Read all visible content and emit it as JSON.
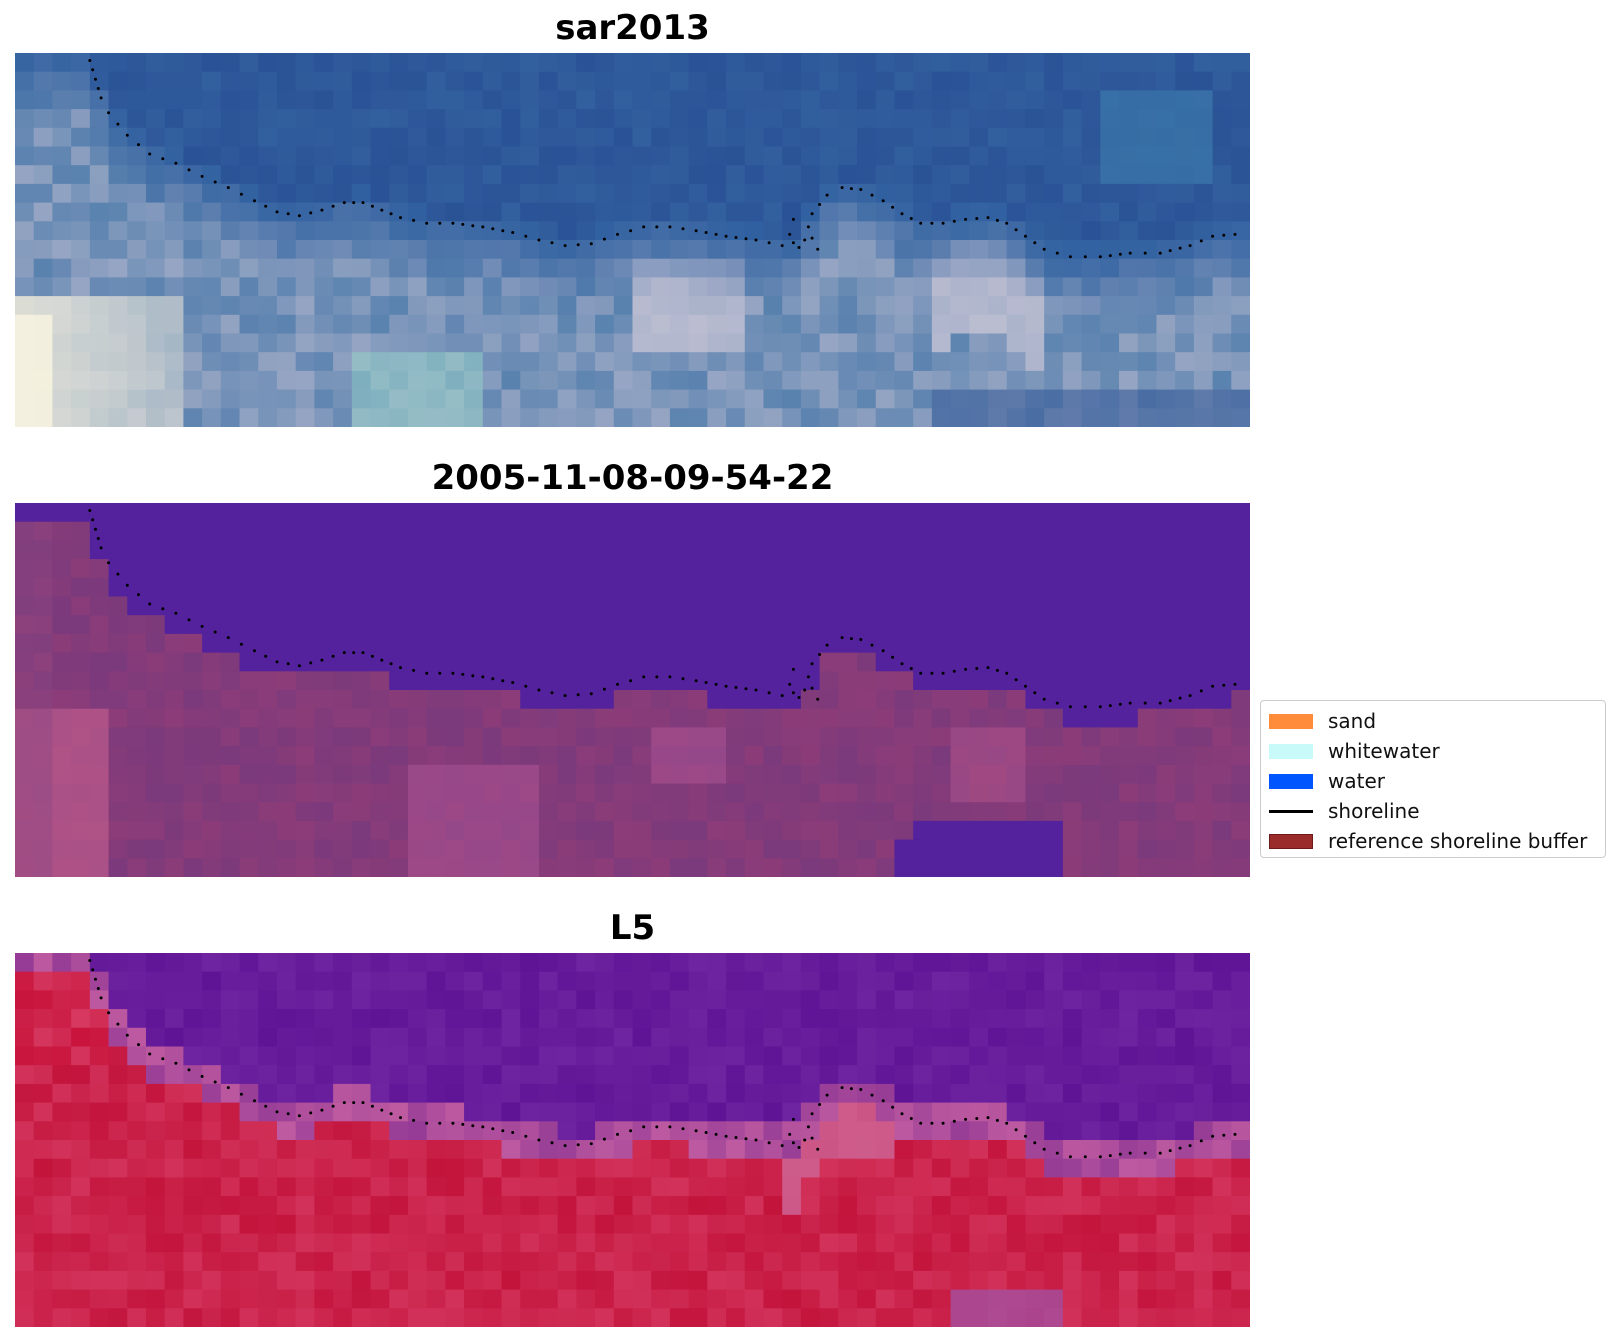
{
  "panels": [
    {
      "title": "sar2013",
      "render": "rgb"
    },
    {
      "title": "2005-11-08-09-54-22",
      "render": "classified"
    },
    {
      "title": "L5",
      "render": "ndwi"
    }
  ],
  "legend": {
    "items": [
      {
        "label": "sand",
        "kind": "patch",
        "color": "#ff8c3a",
        "edge": "#ff8c3a"
      },
      {
        "label": "whitewater",
        "kind": "patch",
        "color": "#c8fafa",
        "edge": "#c8fafa"
      },
      {
        "label": "water",
        "kind": "patch",
        "color": "#0055ff",
        "edge": "#0055ff"
      },
      {
        "label": "shoreline",
        "kind": "line",
        "color": "#000000"
      },
      {
        "label": "reference shoreline buffer",
        "kind": "patch",
        "color": "#9b2c2c",
        "edge": "#6e1a1a"
      }
    ]
  },
  "chart_data": {
    "type": "heatmap",
    "grid": {
      "cols": 66,
      "rows": 20
    },
    "shoreline": {
      "color": "#000000",
      "style": "dotted",
      "points": [
        [
          4.0,
          0.4
        ],
        [
          4.3,
          1.4
        ],
        [
          4.6,
          2.4
        ],
        [
          5.0,
          3.2
        ],
        [
          6.0,
          4.4
        ],
        [
          7.2,
          5.4
        ],
        [
          8.6,
          5.9
        ],
        [
          10.0,
          6.6
        ],
        [
          11.4,
          7.2
        ],
        [
          12.8,
          7.9
        ],
        [
          14.0,
          8.5
        ],
        [
          15.2,
          8.7
        ],
        [
          16.4,
          8.4
        ],
        [
          17.6,
          8.0
        ],
        [
          18.6,
          8.0
        ],
        [
          19.6,
          8.4
        ],
        [
          20.6,
          8.8
        ],
        [
          22.0,
          9.1
        ],
        [
          23.4,
          9.1
        ],
        [
          25.0,
          9.3
        ],
        [
          26.6,
          9.6
        ],
        [
          28.0,
          10.0
        ],
        [
          29.4,
          10.3
        ],
        [
          30.8,
          10.2
        ],
        [
          32.2,
          9.7
        ],
        [
          33.6,
          9.3
        ],
        [
          35.0,
          9.3
        ],
        [
          36.4,
          9.5
        ],
        [
          38.0,
          9.8
        ],
        [
          39.6,
          10.0
        ],
        [
          41.0,
          10.3
        ],
        [
          42.2,
          10.0
        ],
        [
          42.6,
          8.6
        ],
        [
          43.4,
          7.6
        ],
        [
          44.2,
          7.2
        ],
        [
          45.2,
          7.3
        ],
        [
          46.4,
          7.9
        ],
        [
          47.4,
          8.6
        ],
        [
          48.4,
          9.1
        ],
        [
          49.6,
          9.1
        ],
        [
          50.8,
          8.9
        ],
        [
          52.0,
          8.8
        ],
        [
          53.0,
          9.1
        ],
        [
          54.0,
          9.8
        ],
        [
          55.0,
          10.5
        ],
        [
          56.4,
          10.9
        ],
        [
          58.0,
          10.9
        ],
        [
          59.6,
          10.7
        ],
        [
          61.2,
          10.7
        ],
        [
          62.8,
          10.3
        ],
        [
          64.0,
          9.8
        ],
        [
          65.2,
          9.7
        ],
        [
          66.0,
          9.6
        ]
      ]
    },
    "classified_palette": {
      "water": "#53229c",
      "land_a": "#7a3a7c",
      "land_b": "#c7608f"
    }
  }
}
